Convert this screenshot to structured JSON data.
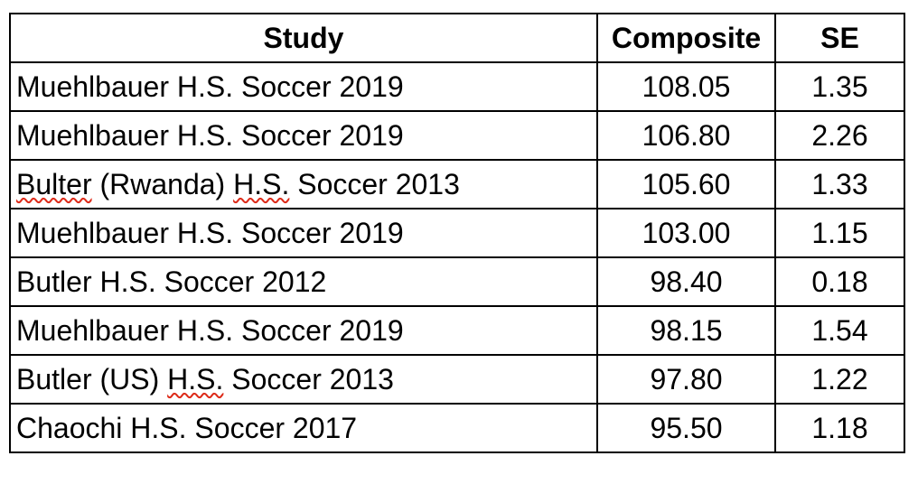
{
  "table": {
    "columns": [
      {
        "label": "Study"
      },
      {
        "label": "Composite"
      },
      {
        "label": "SE"
      }
    ],
    "rows": [
      {
        "study": [
          {
            "text": "Muehlbauer H.S. Soccer 2019",
            "misspelled": false
          }
        ],
        "composite": "108.05",
        "se": "1.35"
      },
      {
        "study": [
          {
            "text": "Muehlbauer H.S. Soccer 2019",
            "misspelled": false
          }
        ],
        "composite": "106.80",
        "se": "2.26"
      },
      {
        "study": [
          {
            "text": "Bulter",
            "misspelled": true
          },
          {
            "text": " (Rwanda) ",
            "misspelled": false
          },
          {
            "text": "H.S.",
            "misspelled": true
          },
          {
            "text": " Soccer 2013",
            "misspelled": false
          }
        ],
        "composite": "105.60",
        "se": "1.33"
      },
      {
        "study": [
          {
            "text": "Muehlbauer H.S. Soccer 2019",
            "misspelled": false
          }
        ],
        "composite": "103.00",
        "se": "1.15"
      },
      {
        "study": [
          {
            "text": "Butler H.S. Soccer 2012",
            "misspelled": false
          }
        ],
        "composite": "98.40",
        "se": "0.18"
      },
      {
        "study": [
          {
            "text": "Muehlbauer H.S. Soccer 2019",
            "misspelled": false
          }
        ],
        "composite": "98.15",
        "se": "1.54"
      },
      {
        "study": [
          {
            "text": "Butler (US) ",
            "misspelled": false
          },
          {
            "text": "H.S.",
            "misspelled": true
          },
          {
            "text": " Soccer 2013",
            "misspelled": false
          }
        ],
        "composite": "97.80",
        "se": "1.22"
      },
      {
        "study": [
          {
            "text": "Chaochi H.S. Soccer 2017",
            "misspelled": false
          }
        ],
        "composite": "95.50",
        "se": "1.18"
      }
    ]
  },
  "colors": {
    "border": "#000000",
    "text": "#000000",
    "background": "#ffffff",
    "spellcheck_squiggle": "#dd2a18"
  }
}
